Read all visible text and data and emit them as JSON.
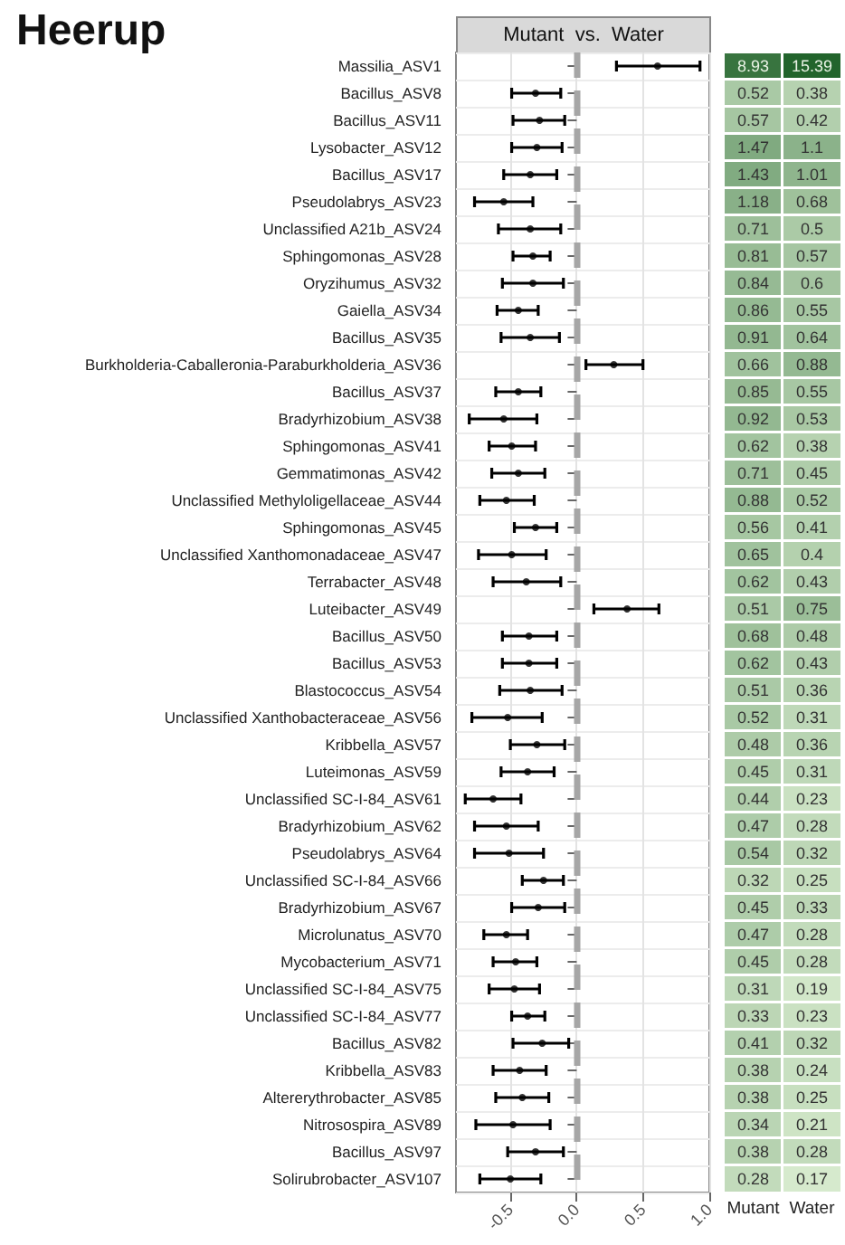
{
  "chart_data": [
    {
      "type": "scatter",
      "title": "Heerup",
      "subtitle": "Mutant  vs.  Water",
      "orientation": "horizontal",
      "categories": [
        "Massilia_ASV1",
        "Bacillus_ASV8",
        "Bacillus_ASV11",
        "Lysobacter_ASV12",
        "Bacillus_ASV17",
        "Pseudolabrys_ASV23",
        "Unclassified A21b_ASV24",
        "Sphingomonas_ASV28",
        "Oryzihumus_ASV32",
        "Gaiella_ASV34",
        "Bacillus_ASV35",
        "Burkholderia-Caballeronia-Paraburkholderia_ASV36",
        "Bacillus_ASV37",
        "Bradyrhizobium_ASV38",
        "Sphingomonas_ASV41",
        "Gemmatimonas_ASV42",
        "Unclassified Methyloligellaceae_ASV44",
        "Sphingomonas_ASV45",
        "Unclassified Xanthomonadaceae_ASV47",
        "Terrabacter_ASV48",
        "Luteibacter_ASV49",
        "Bacillus_ASV50",
        "Bacillus_ASV53",
        "Blastococcus_ASV54",
        "Unclassified Xanthobacteraceae_ASV56",
        "Kribbella_ASV57",
        "Luteimonas_ASV59",
        "Unclassified SC-I-84_ASV61",
        "Bradyrhizobium_ASV62",
        "Pseudolabrys_ASV64",
        "Unclassified SC-I-84_ASV66",
        "Bradyrhizobium_ASV67",
        "Microlunatus_ASV70",
        "Mycobacterium_ASV71",
        "Unclassified SC-I-84_ASV75",
        "Unclassified SC-I-84_ASV77",
        "Bacillus_ASV82",
        "Kribbella_ASV83",
        "Altererythrobacter_ASV85",
        "Nitrosospira_ASV89",
        "Bacillus_ASV97",
        "Solirubrobacter_ASV107"
      ],
      "values": [
        0.61,
        -0.31,
        -0.28,
        -0.3,
        -0.35,
        -0.55,
        -0.35,
        -0.33,
        -0.33,
        -0.44,
        -0.35,
        0.28,
        -0.44,
        -0.55,
        -0.49,
        -0.44,
        -0.53,
        -0.31,
        -0.49,
        -0.38,
        0.38,
        -0.36,
        -0.36,
        -0.35,
        -0.52,
        -0.3,
        -0.37,
        -0.63,
        -0.53,
        -0.51,
        -0.25,
        -0.29,
        -0.53,
        -0.46,
        -0.47,
        -0.37,
        -0.26,
        -0.43,
        -0.41,
        -0.48,
        -0.31,
        -0.5
      ],
      "errors": [
        [
          0.3,
          0.93
        ],
        [
          -0.49,
          -0.12
        ],
        [
          -0.48,
          -0.09
        ],
        [
          -0.49,
          -0.11
        ],
        [
          -0.55,
          -0.15
        ],
        [
          -0.77,
          -0.33
        ],
        [
          -0.59,
          -0.12
        ],
        [
          -0.48,
          -0.2
        ],
        [
          -0.56,
          -0.1
        ],
        [
          -0.6,
          -0.29
        ],
        [
          -0.57,
          -0.13
        ],
        [
          0.07,
          0.5
        ],
        [
          -0.61,
          -0.27
        ],
        [
          -0.81,
          -0.3
        ],
        [
          -0.66,
          -0.31
        ],
        [
          -0.64,
          -0.24
        ],
        [
          -0.73,
          -0.32
        ],
        [
          -0.47,
          -0.15
        ],
        [
          -0.74,
          -0.23
        ],
        [
          -0.63,
          -0.12
        ],
        [
          0.13,
          0.62
        ],
        [
          -0.56,
          -0.15
        ],
        [
          -0.56,
          -0.15
        ],
        [
          -0.58,
          -0.11
        ],
        [
          -0.79,
          -0.26
        ],
        [
          -0.5,
          -0.09
        ],
        [
          -0.57,
          -0.17
        ],
        [
          -0.84,
          -0.42
        ],
        [
          -0.77,
          -0.29
        ],
        [
          -0.77,
          -0.25
        ],
        [
          -0.41,
          -0.1
        ],
        [
          -0.49,
          -0.09
        ],
        [
          -0.7,
          -0.37
        ],
        [
          -0.63,
          -0.3
        ],
        [
          -0.66,
          -0.28
        ],
        [
          -0.49,
          -0.24
        ],
        [
          -0.48,
          -0.06
        ],
        [
          -0.63,
          -0.23
        ],
        [
          -0.61,
          -0.21
        ],
        [
          -0.76,
          -0.2
        ],
        [
          -0.52,
          -0.1
        ],
        [
          -0.73,
          -0.27
        ]
      ],
      "color": "#000000",
      "marker": "circle",
      "grid": true,
      "xlim": [
        -0.91,
        1.0
      ],
      "xticks": [
        -0.5,
        {
          "value": 0,
          "label": "0.0"
        },
        0.5,
        {
          "value": 1,
          "label": "1.0"
        }
      ],
      "ref_lines": [
        {
          "axis": "x",
          "value": 0,
          "color": "#a6a6a6",
          "line_style": "dashed"
        }
      ]
    },
    {
      "type": "heatmap",
      "categories": [
        "Mutant",
        "Water"
      ],
      "tick_labels": "x",
      "data_labels": true,
      "y_categories": [
        null,
        null,
        null,
        null,
        null,
        null,
        null,
        null,
        null,
        null,
        null,
        null,
        null,
        null,
        null,
        null,
        null,
        null,
        null,
        null,
        null,
        null,
        null,
        null,
        null,
        null,
        null,
        null,
        null,
        null,
        null,
        null,
        null,
        null,
        null,
        null,
        null,
        null,
        null,
        null,
        null,
        null
      ],
      "cells": [
        [
          8.93,
          15.39
        ],
        [
          0.52,
          0.38
        ],
        [
          0.57,
          0.42
        ],
        [
          1.47,
          1.1
        ],
        [
          1.43,
          1.01
        ],
        [
          1.18,
          0.68
        ],
        [
          0.71,
          0.5
        ],
        [
          0.81,
          0.57
        ],
        [
          0.84,
          0.6
        ],
        [
          0.86,
          0.55
        ],
        [
          0.91,
          0.64
        ],
        [
          0.66,
          0.88
        ],
        [
          0.85,
          0.55
        ],
        [
          0.92,
          0.53
        ],
        [
          0.62,
          0.38
        ],
        [
          0.71,
          0.45
        ],
        [
          0.88,
          0.52
        ],
        [
          0.56,
          0.41
        ],
        [
          0.65,
          0.4
        ],
        [
          0.62,
          0.43
        ],
        [
          0.51,
          0.75
        ],
        [
          0.68,
          0.48
        ],
        [
          0.62,
          0.43
        ],
        [
          0.51,
          0.36
        ],
        [
          0.52,
          0.31
        ],
        [
          0.48,
          0.36
        ],
        [
          0.45,
          0.31
        ],
        [
          0.44,
          0.23
        ],
        [
          0.47,
          0.28
        ],
        [
          0.54,
          0.32
        ],
        [
          0.32,
          0.25
        ],
        [
          0.45,
          0.33
        ],
        [
          0.47,
          0.28
        ],
        [
          0.45,
          0.28
        ],
        [
          0.31,
          0.19
        ],
        [
          0.33,
          0.23
        ],
        [
          0.41,
          0.32
        ],
        [
          0.38,
          0.24
        ],
        [
          0.38,
          0.25
        ],
        [
          0.34,
          0.21
        ],
        [
          0.38,
          0.28
        ],
        [
          0.28,
          0.17
        ]
      ]
    }
  ]
}
